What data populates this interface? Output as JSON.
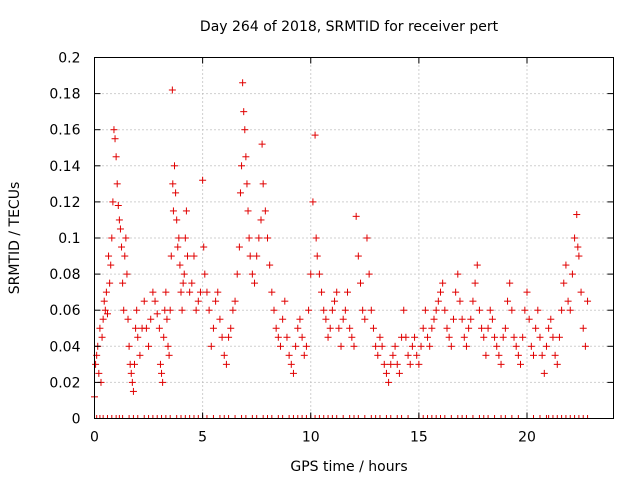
{
  "chart_data": {
    "type": "scatter",
    "title": "Day 264 of 2018, SRMTID for receiver pert",
    "xlabel": "GPS time / hours",
    "ylabel": "SRMTID / TECUs",
    "xlim": [
      0,
      24
    ],
    "ylim": [
      0,
      0.2
    ],
    "xticks": [
      0,
      5,
      10,
      15,
      20
    ],
    "xtick_labels": [
      "0",
      "5",
      "10",
      "15",
      "20"
    ],
    "yticks": [
      0,
      0.02,
      0.04,
      0.06,
      0.08,
      0.1,
      0.12,
      0.14,
      0.16,
      0.18,
      0.2
    ],
    "ytick_labels": [
      "0",
      "0.02",
      "0.04",
      "0.06",
      "0.08",
      "0.1",
      "0.12",
      "0.14",
      "0.16",
      "0.18",
      "0.2"
    ],
    "grid": true,
    "marker": "plus",
    "color": "#e00000",
    "series": [
      {
        "name": "SRMTID",
        "points": [
          [
            0.0,
            0.012
          ],
          [
            0.05,
            0.03
          ],
          [
            0.1,
            0.035
          ],
          [
            0.15,
            0.04
          ],
          [
            0.2,
            0.025
          ],
          [
            0.25,
            0.05
          ],
          [
            0.3,
            0.02
          ],
          [
            0.35,
            0.045
          ],
          [
            0.4,
            0.055
          ],
          [
            0.45,
            0.065
          ],
          [
            0.5,
            0.06
          ],
          [
            0.55,
            0.07
          ],
          [
            0.6,
            0.058
          ],
          [
            0.65,
            0.09
          ],
          [
            0.7,
            0.075
          ],
          [
            0.75,
            0.085
          ],
          [
            0.8,
            0.1
          ],
          [
            0.85,
            0.12
          ],
          [
            0.9,
            0.16
          ],
          [
            0.95,
            0.155
          ],
          [
            1.0,
            0.145
          ],
          [
            1.05,
            0.13
          ],
          [
            1.1,
            0.118
          ],
          [
            1.15,
            0.11
          ],
          [
            1.2,
            0.105
          ],
          [
            1.25,
            0.095
          ],
          [
            1.3,
            0.075
          ],
          [
            1.35,
            0.06
          ],
          [
            1.4,
            0.09
          ],
          [
            1.45,
            0.1
          ],
          [
            1.5,
            0.08
          ],
          [
            1.55,
            0.055
          ],
          [
            1.6,
            0.04
          ],
          [
            1.65,
            0.03
          ],
          [
            1.7,
            0.025
          ],
          [
            1.75,
            0.02
          ],
          [
            1.8,
            0.015
          ],
          [
            1.85,
            0.03
          ],
          [
            1.9,
            0.05
          ],
          [
            1.95,
            0.06
          ],
          [
            2.0,
            0.045
          ],
          [
            2.1,
            0.035
          ],
          [
            2.2,
            0.05
          ],
          [
            2.3,
            0.065
          ],
          [
            2.4,
            0.05
          ],
          [
            2.5,
            0.04
          ],
          [
            2.6,
            0.055
          ],
          [
            2.7,
            0.07
          ],
          [
            2.8,
            0.065
          ],
          [
            2.9,
            0.058
          ],
          [
            3.0,
            0.05
          ],
          [
            3.05,
            0.03
          ],
          [
            3.1,
            0.025
          ],
          [
            3.15,
            0.02
          ],
          [
            3.2,
            0.045
          ],
          [
            3.25,
            0.06
          ],
          [
            3.3,
            0.07
          ],
          [
            3.35,
            0.055
          ],
          [
            3.4,
            0.04
          ],
          [
            3.45,
            0.035
          ],
          [
            3.5,
            0.06
          ],
          [
            3.55,
            0.09
          ],
          [
            3.6,
            0.182
          ],
          [
            3.62,
            0.13
          ],
          [
            3.65,
            0.115
          ],
          [
            3.7,
            0.14
          ],
          [
            3.75,
            0.125
          ],
          [
            3.8,
            0.11
          ],
          [
            3.85,
            0.095
          ],
          [
            3.9,
            0.1
          ],
          [
            3.95,
            0.085
          ],
          [
            4.0,
            0.07
          ],
          [
            4.05,
            0.06
          ],
          [
            4.1,
            0.075
          ],
          [
            4.15,
            0.08
          ],
          [
            4.2,
            0.1
          ],
          [
            4.25,
            0.115
          ],
          [
            4.3,
            0.09
          ],
          [
            4.4,
            0.07
          ],
          [
            4.5,
            0.075
          ],
          [
            4.6,
            0.09
          ],
          [
            4.7,
            0.06
          ],
          [
            4.8,
            0.065
          ],
          [
            4.9,
            0.07
          ],
          [
            5.0,
            0.132
          ],
          [
            5.05,
            0.095
          ],
          [
            5.1,
            0.08
          ],
          [
            5.2,
            0.07
          ],
          [
            5.3,
            0.06
          ],
          [
            5.4,
            0.04
          ],
          [
            5.5,
            0.05
          ],
          [
            5.6,
            0.065
          ],
          [
            5.7,
            0.07
          ],
          [
            5.8,
            0.055
          ],
          [
            5.9,
            0.045
          ],
          [
            6.0,
            0.035
          ],
          [
            6.1,
            0.03
          ],
          [
            6.2,
            0.045
          ],
          [
            6.3,
            0.05
          ],
          [
            6.4,
            0.06
          ],
          [
            6.5,
            0.065
          ],
          [
            6.6,
            0.08
          ],
          [
            6.7,
            0.095
          ],
          [
            6.75,
            0.125
          ],
          [
            6.8,
            0.14
          ],
          [
            6.85,
            0.186
          ],
          [
            6.9,
            0.17
          ],
          [
            6.95,
            0.16
          ],
          [
            7.0,
            0.145
          ],
          [
            7.05,
            0.13
          ],
          [
            7.1,
            0.115
          ],
          [
            7.15,
            0.1
          ],
          [
            7.2,
            0.09
          ],
          [
            7.3,
            0.08
          ],
          [
            7.4,
            0.075
          ],
          [
            7.5,
            0.09
          ],
          [
            7.6,
            0.1
          ],
          [
            7.7,
            0.11
          ],
          [
            7.75,
            0.152
          ],
          [
            7.8,
            0.13
          ],
          [
            7.9,
            0.115
          ],
          [
            8.0,
            0.1
          ],
          [
            8.1,
            0.085
          ],
          [
            8.2,
            0.07
          ],
          [
            8.3,
            0.06
          ],
          [
            8.4,
            0.05
          ],
          [
            8.5,
            0.045
          ],
          [
            8.6,
            0.04
          ],
          [
            8.7,
            0.055
          ],
          [
            8.8,
            0.065
          ],
          [
            8.9,
            0.045
          ],
          [
            9.0,
            0.035
          ],
          [
            9.1,
            0.03
          ],
          [
            9.2,
            0.025
          ],
          [
            9.3,
            0.04
          ],
          [
            9.4,
            0.05
          ],
          [
            9.5,
            0.055
          ],
          [
            9.6,
            0.045
          ],
          [
            9.7,
            0.035
          ],
          [
            9.8,
            0.04
          ],
          [
            9.9,
            0.06
          ],
          [
            10.0,
            0.08
          ],
          [
            10.1,
            0.12
          ],
          [
            10.2,
            0.157
          ],
          [
            10.25,
            0.1
          ],
          [
            10.3,
            0.09
          ],
          [
            10.4,
            0.08
          ],
          [
            10.5,
            0.07
          ],
          [
            10.6,
            0.06
          ],
          [
            10.7,
            0.055
          ],
          [
            10.8,
            0.045
          ],
          [
            10.9,
            0.05
          ],
          [
            11.0,
            0.06
          ],
          [
            11.1,
            0.065
          ],
          [
            11.2,
            0.07
          ],
          [
            11.3,
            0.05
          ],
          [
            11.4,
            0.04
          ],
          [
            11.5,
            0.055
          ],
          [
            11.6,
            0.06
          ],
          [
            11.7,
            0.07
          ],
          [
            11.8,
            0.05
          ],
          [
            11.9,
            0.045
          ],
          [
            12.0,
            0.04
          ],
          [
            12.1,
            0.112
          ],
          [
            12.2,
            0.09
          ],
          [
            12.3,
            0.075
          ],
          [
            12.4,
            0.06
          ],
          [
            12.5,
            0.055
          ],
          [
            12.6,
            0.1
          ],
          [
            12.7,
            0.08
          ],
          [
            12.8,
            0.06
          ],
          [
            12.9,
            0.05
          ],
          [
            13.0,
            0.04
          ],
          [
            13.1,
            0.035
          ],
          [
            13.2,
            0.045
          ],
          [
            13.3,
            0.04
          ],
          [
            13.4,
            0.03
          ],
          [
            13.5,
            0.025
          ],
          [
            13.6,
            0.02
          ],
          [
            13.7,
            0.03
          ],
          [
            13.8,
            0.035
          ],
          [
            13.9,
            0.04
          ],
          [
            14.0,
            0.03
          ],
          [
            14.1,
            0.025
          ],
          [
            14.2,
            0.045
          ],
          [
            14.3,
            0.06
          ],
          [
            14.4,
            0.045
          ],
          [
            14.5,
            0.035
          ],
          [
            14.6,
            0.03
          ],
          [
            14.7,
            0.04
          ],
          [
            14.8,
            0.045
          ],
          [
            14.9,
            0.035
          ],
          [
            15.0,
            0.03
          ],
          [
            15.1,
            0.04
          ],
          [
            15.2,
            0.05
          ],
          [
            15.3,
            0.06
          ],
          [
            15.4,
            0.045
          ],
          [
            15.5,
            0.04
          ],
          [
            15.6,
            0.05
          ],
          [
            15.7,
            0.055
          ],
          [
            15.8,
            0.06
          ],
          [
            15.9,
            0.065
          ],
          [
            16.0,
            0.07
          ],
          [
            16.1,
            0.075
          ],
          [
            16.2,
            0.06
          ],
          [
            16.3,
            0.05
          ],
          [
            16.4,
            0.045
          ],
          [
            16.5,
            0.04
          ],
          [
            16.6,
            0.055
          ],
          [
            16.7,
            0.07
          ],
          [
            16.8,
            0.08
          ],
          [
            16.9,
            0.065
          ],
          [
            17.0,
            0.055
          ],
          [
            17.1,
            0.045
          ],
          [
            17.2,
            0.04
          ],
          [
            17.3,
            0.05
          ],
          [
            17.4,
            0.055
          ],
          [
            17.5,
            0.065
          ],
          [
            17.6,
            0.075
          ],
          [
            17.7,
            0.085
          ],
          [
            17.8,
            0.06
          ],
          [
            17.9,
            0.05
          ],
          [
            18.0,
            0.045
          ],
          [
            18.1,
            0.035
          ],
          [
            18.2,
            0.05
          ],
          [
            18.3,
            0.06
          ],
          [
            18.4,
            0.055
          ],
          [
            18.5,
            0.045
          ],
          [
            18.6,
            0.04
          ],
          [
            18.7,
            0.035
          ],
          [
            18.8,
            0.03
          ],
          [
            18.9,
            0.045
          ],
          [
            19.0,
            0.05
          ],
          [
            19.1,
            0.065
          ],
          [
            19.2,
            0.075
          ],
          [
            19.3,
            0.06
          ],
          [
            19.4,
            0.045
          ],
          [
            19.5,
            0.04
          ],
          [
            19.6,
            0.035
          ],
          [
            19.7,
            0.03
          ],
          [
            19.8,
            0.045
          ],
          [
            19.9,
            0.06
          ],
          [
            20.0,
            0.07
          ],
          [
            20.1,
            0.055
          ],
          [
            20.2,
            0.04
          ],
          [
            20.3,
            0.035
          ],
          [
            20.4,
            0.05
          ],
          [
            20.5,
            0.06
          ],
          [
            20.6,
            0.045
          ],
          [
            20.7,
            0.035
          ],
          [
            20.8,
            0.025
          ],
          [
            20.9,
            0.04
          ],
          [
            21.0,
            0.05
          ],
          [
            21.1,
            0.055
          ],
          [
            21.2,
            0.045
          ],
          [
            21.3,
            0.035
          ],
          [
            21.4,
            0.03
          ],
          [
            21.5,
            0.045
          ],
          [
            21.6,
            0.06
          ],
          [
            21.7,
            0.075
          ],
          [
            21.8,
            0.085
          ],
          [
            21.9,
            0.065
          ],
          [
            22.0,
            0.06
          ],
          [
            22.1,
            0.08
          ],
          [
            22.2,
            0.1
          ],
          [
            22.3,
            0.113
          ],
          [
            22.35,
            0.095
          ],
          [
            22.4,
            0.09
          ],
          [
            22.5,
            0.07
          ],
          [
            22.6,
            0.05
          ],
          [
            22.7,
            0.04
          ],
          [
            22.8,
            0.065
          ]
        ],
        "zero_points": [
          0.0,
          0.1,
          0.25,
          0.4,
          0.6,
          0.8,
          1.0,
          1.15,
          1.3,
          1.6,
          1.8,
          2.0,
          2.3,
          2.5,
          2.7,
          2.9,
          3.1,
          3.3,
          3.5,
          3.8,
          4.0,
          4.2,
          4.4,
          4.6,
          4.8,
          5.0,
          5.2,
          5.5,
          5.8,
          6.0,
          6.2,
          6.5,
          6.8,
          7.0,
          7.3,
          7.5,
          7.8,
          8.0,
          8.2,
          8.5,
          8.7,
          9.0,
          9.2,
          9.4,
          9.6,
          9.8,
          10.0,
          10.2,
          10.4,
          10.6,
          10.8,
          11.0,
          11.2,
          11.5,
          11.8,
          12.0,
          12.2,
          12.5,
          12.8,
          13.0,
          13.2,
          13.5,
          13.7,
          14.0,
          14.2,
          14.5,
          15.0,
          15.2,
          15.4,
          15.6,
          15.8,
          16.0,
          16.2,
          16.5,
          16.8,
          17.0,
          17.2,
          17.5,
          17.8,
          18.0,
          18.2,
          18.5,
          18.8,
          19.0,
          19.3,
          19.6,
          20.0,
          20.3,
          20.6,
          20.9,
          21.0,
          21.2,
          21.4,
          21.6,
          21.8,
          22.0,
          22.2,
          22.4,
          22.6,
          22.8
        ]
      }
    ]
  }
}
